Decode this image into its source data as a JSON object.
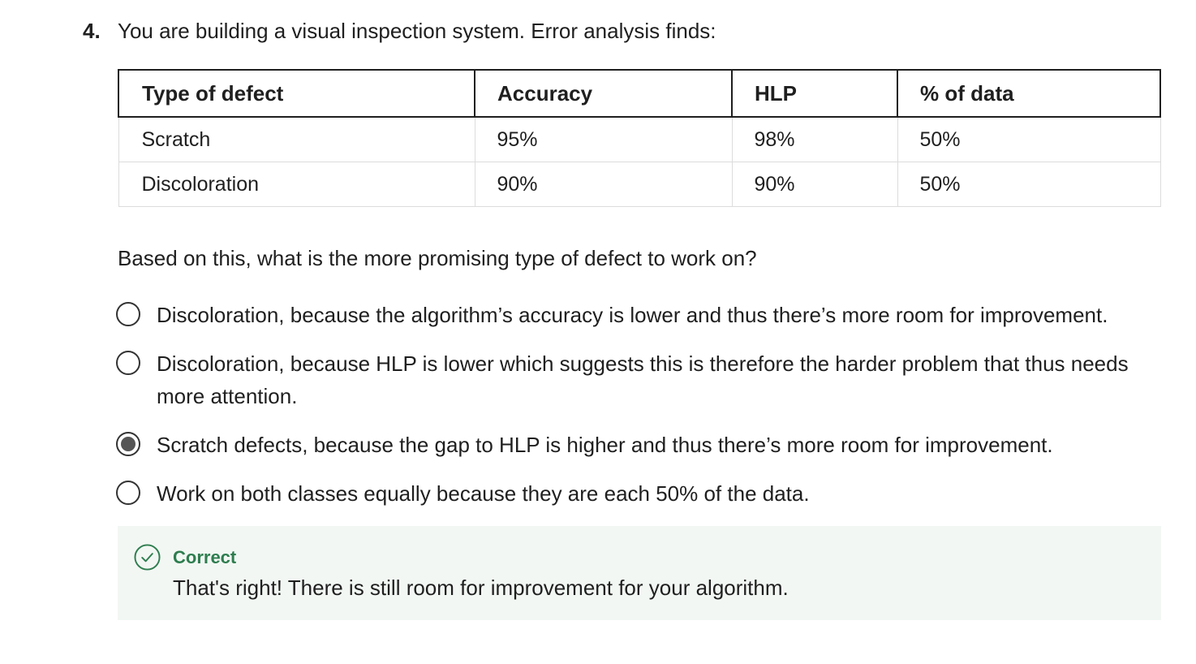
{
  "question": {
    "number": "4.",
    "text": "You are building a visual inspection system. Error analysis finds:"
  },
  "table": {
    "headers": [
      "Type of defect",
      "Accuracy",
      "HLP",
      "% of data"
    ],
    "rows": [
      [
        "Scratch",
        "95%",
        "98%",
        "50%"
      ],
      [
        "Discoloration",
        "90%",
        "90%",
        "50%"
      ]
    ]
  },
  "prompt": "Based on this, what is the more promising type of defect to work on?",
  "options": [
    {
      "label": "Discoloration, because the algorithm’s accuracy is lower and thus there’s more room for improvement.",
      "selected": false
    },
    {
      "label": "Discoloration, because HLP is lower which suggests this is therefore the harder problem that thus needs more attention.",
      "selected": false
    },
    {
      "label": "Scratch defects, because the gap to HLP is higher and thus there’s more room for improvement.",
      "selected": true
    },
    {
      "label": "Work on both classes equally because they are each 50% of the data.",
      "selected": false
    }
  ],
  "feedback": {
    "status": "Correct",
    "message": "That's right! There is still room for improvement for your algorithm.",
    "icon": "check-circle-icon",
    "color": "#2e7d4f"
  }
}
